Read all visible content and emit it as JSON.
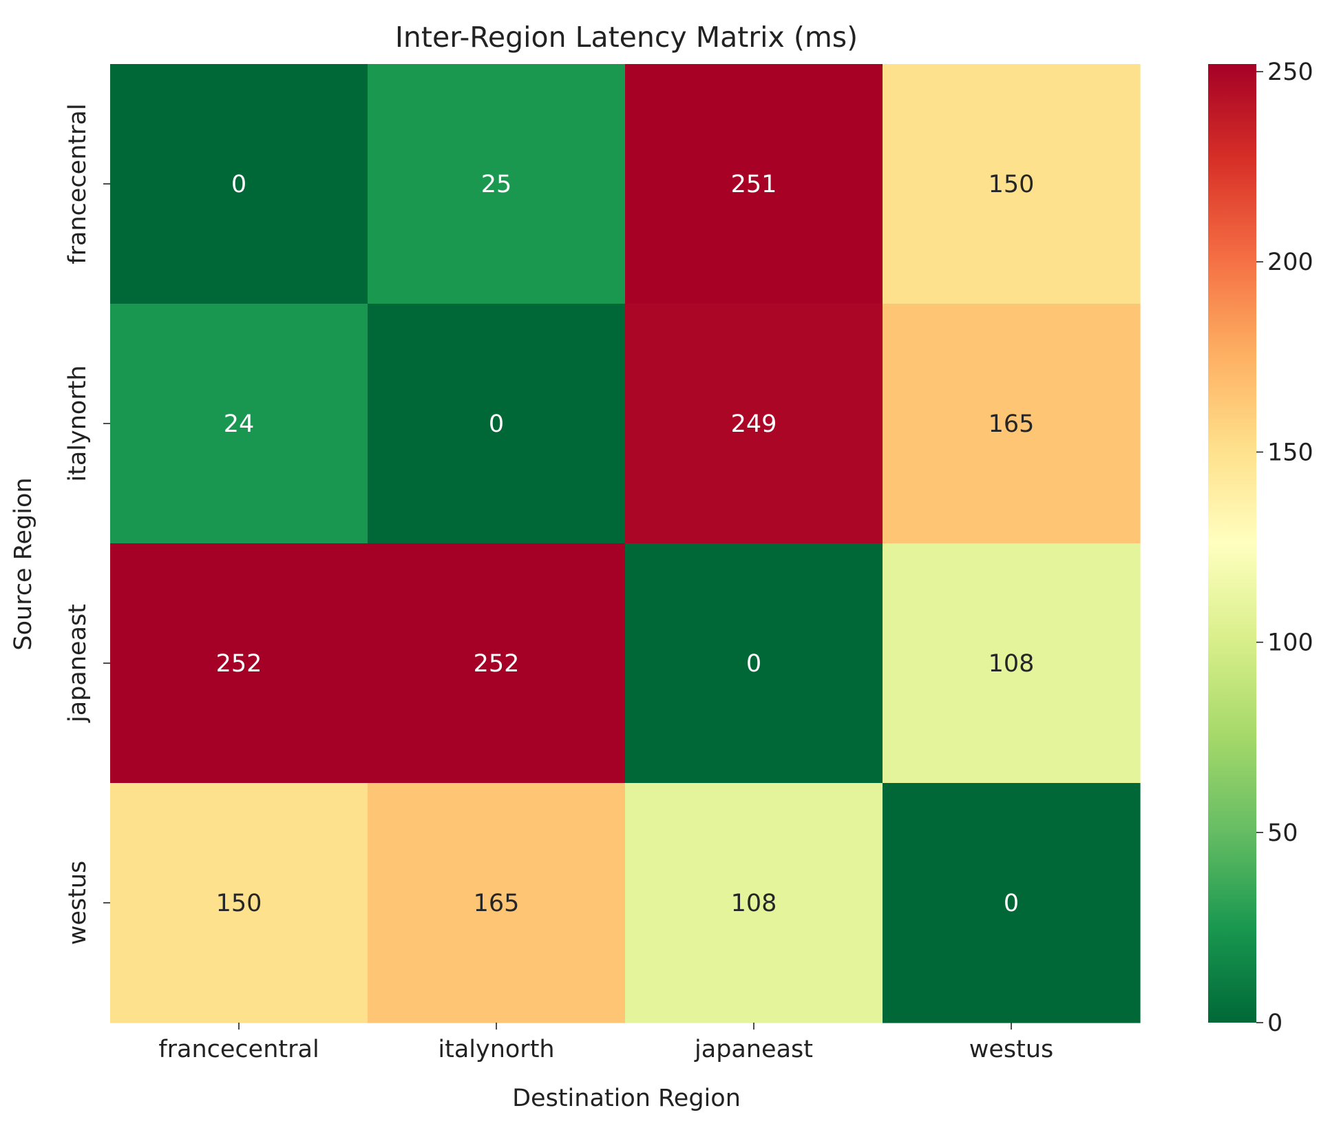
{
  "chart_data": {
    "type": "heatmap",
    "title": "Inter-Region Latency Matrix (ms)",
    "xlabel": "Destination Region",
    "ylabel": "Source Region",
    "x_categories": [
      "francecentral",
      "italynorth",
      "japaneast",
      "westus"
    ],
    "y_categories": [
      "francecentral",
      "italynorth",
      "japaneast",
      "westus"
    ],
    "values": [
      [
        0,
        25,
        251,
        150
      ],
      [
        24,
        0,
        249,
        165
      ],
      [
        252,
        252,
        0,
        108
      ],
      [
        150,
        165,
        108,
        0
      ]
    ],
    "annotations": [
      [
        "0",
        "25",
        "251",
        "150"
      ],
      [
        "24",
        "0",
        "249",
        "165"
      ],
      [
        "252",
        "252",
        "0",
        "108"
      ],
      [
        "150",
        "165",
        "108",
        "0"
      ]
    ],
    "colorbar": {
      "colormap": "RdYlGn_r",
      "range": [
        0,
        252
      ],
      "ticks": [
        0,
        50,
        100,
        150,
        200,
        250
      ],
      "tick_labels": [
        "0",
        "50",
        "100",
        "150",
        "200",
        "250"
      ]
    },
    "grid": false,
    "legend": "colorbar-right"
  }
}
